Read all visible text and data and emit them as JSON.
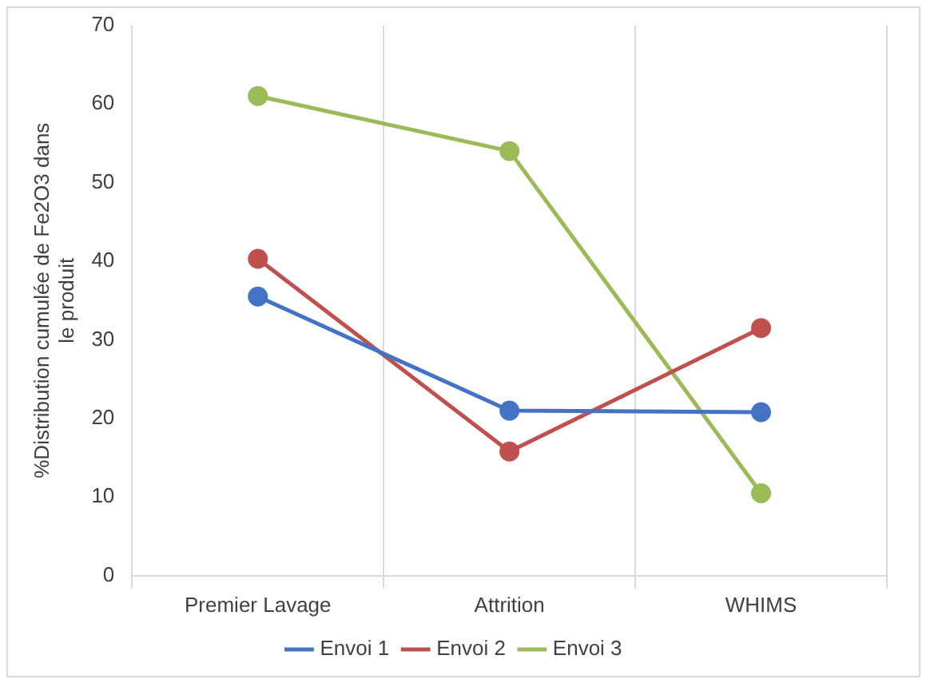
{
  "chart_data": {
    "type": "line",
    "ylabel": "%Distribution cumulée de Fe2O3 dans le produit",
    "categories": [
      "Premier Lavage",
      "Attrition",
      "WHIMS"
    ],
    "series": [
      {
        "name": "Envoi 1",
        "color": "#4472c4",
        "values": [
          35.5,
          21,
          20.8
        ]
      },
      {
        "name": "Envoi 2",
        "color": "#c0504d",
        "values": [
          40.3,
          15.8,
          31.5
        ]
      },
      {
        "name": "Envoi 3",
        "color": "#9bbb59",
        "values": [
          61,
          54,
          10.5
        ]
      }
    ],
    "ylim": [
      0,
      70
    ],
    "yticks": [
      0,
      10,
      20,
      30,
      40,
      50,
      60,
      70
    ],
    "grid": "x",
    "legend": "bottom",
    "marker": "circle",
    "line_style": "solid"
  }
}
